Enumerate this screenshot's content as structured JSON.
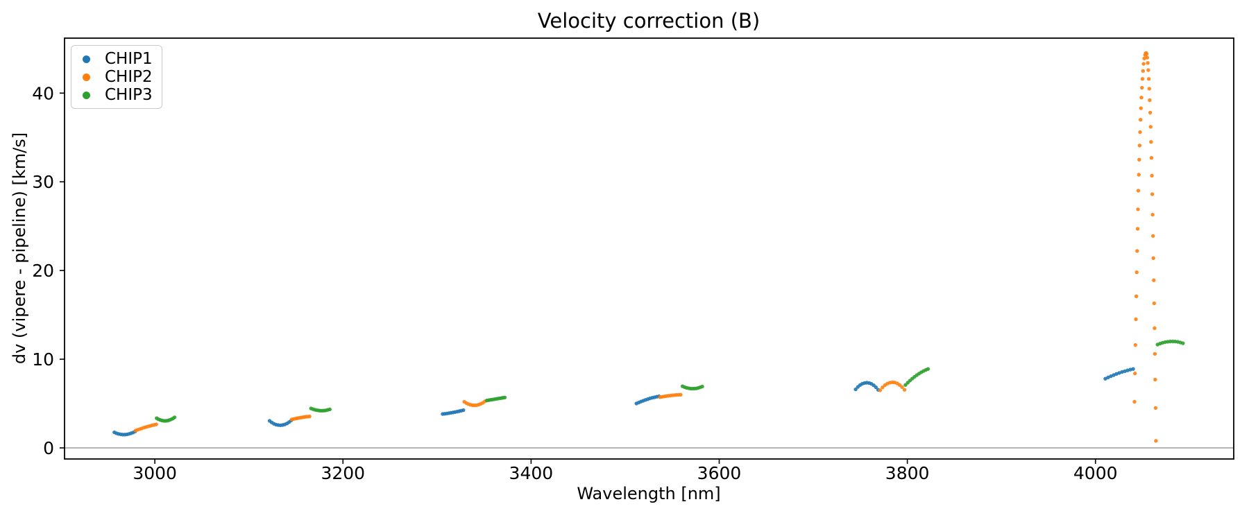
{
  "figure": {
    "title": "Velocity correction (B)",
    "xlabel": "Wavelength [nm]",
    "ylabel": "dv (vipere - pipeline) [km/s]",
    "background": "#ffffff"
  },
  "axes": {
    "xlim": [
      2904,
      4147
    ],
    "ylim": [
      -1.25,
      46.2
    ],
    "xticks": [
      3000,
      3200,
      3400,
      3600,
      3800,
      4000
    ],
    "yticks": [
      0,
      10,
      20,
      30,
      40
    ],
    "spine_color": "#000000",
    "tick_color": "#000000",
    "zero_line": {
      "y": 0,
      "color": "#9b9b9b"
    }
  },
  "legend": {
    "position": "upper left",
    "entries": [
      {
        "label": "CHIP1",
        "color": "#1f77b4"
      },
      {
        "label": "CHIP2",
        "color": "#ff7f0e"
      },
      {
        "label": "CHIP3",
        "color": "#2ca02c"
      }
    ]
  },
  "chart_data": {
    "type": "scatter",
    "title": "Velocity correction (B)",
    "xlabel": "Wavelength [nm]",
    "ylabel": "dv (vipere - pipeline) [km/s]",
    "xlim": [
      2904,
      4147
    ],
    "ylim": [
      -1.25,
      46.2
    ],
    "grid": false,
    "legend_position": "upper left",
    "marker": "dot",
    "marker_radius_px": 2.7,
    "series": [
      {
        "name": "CHIP1",
        "color": "#1f77b4",
        "segments": [
          {
            "x": [
              2957,
              2959.2,
              2961.4,
              2963.6,
              2965.8,
              2968,
              2970.2,
              2972.4,
              2974.6,
              2976.8,
              2979
            ],
            "y": [
              1.75,
              1.65,
              1.58,
              1.53,
              1.5,
              1.5,
              1.52,
              1.57,
              1.64,
              1.73,
              1.85
            ]
          },
          {
            "x": [
              3122,
              3124.3,
              3126.6,
              3128.9,
              3131.2,
              3133.5,
              3135.8,
              3138.1,
              3140.4,
              3142.7,
              3145
            ],
            "y": [
              3.05,
              2.87,
              2.72,
              2.62,
              2.57,
              2.55,
              2.58,
              2.64,
              2.75,
              2.91,
              3.1
            ]
          },
          {
            "x": [
              3306,
              3308.2,
              3310.4,
              3312.6,
              3314.8,
              3317,
              3319.2,
              3321.4,
              3323.6,
              3325.8,
              3328
            ],
            "y": [
              3.82,
              3.85,
              3.88,
              3.92,
              3.96,
              4.0,
              4.04,
              4.09,
              4.14,
              4.2,
              4.25
            ]
          },
          {
            "x": [
              3512,
              3514.4,
              3516.8,
              3519.2,
              3521.6,
              3524,
              3526.4,
              3528.8,
              3531.2,
              3533.6,
              3536
            ],
            "y": [
              5.0,
              5.11,
              5.22,
              5.32,
              5.41,
              5.5,
              5.58,
              5.65,
              5.71,
              5.77,
              5.82
            ]
          },
          {
            "x": [
              3745,
              3747.4,
              3749.8,
              3752.2,
              3754.6,
              3757,
              3759.4,
              3761.8,
              3764.2,
              3766.6,
              3769
            ],
            "y": [
              6.6,
              6.87,
              7.09,
              7.24,
              7.32,
              7.35,
              7.31,
              7.22,
              7.06,
              6.83,
              6.55
            ]
          },
          {
            "x": [
              4010.5,
              4013.5,
              4016.4,
              4019.4,
              4022.3,
              4025.3,
              4028.2,
              4031.2,
              4034.1,
              4037.1,
              4040
            ],
            "y": [
              7.8,
              7.95,
              8.08,
              8.21,
              8.34,
              8.45,
              8.56,
              8.65,
              8.74,
              8.83,
              8.9
            ]
          }
        ]
      },
      {
        "name": "CHIP2",
        "color": "#ff7f0e",
        "segments": [
          {
            "x": [
              2979.5,
              2981.7,
              2983.9,
              2986.1,
              2988.3,
              2990.5,
              2992.7,
              2994.9,
              2997.1,
              2999.3,
              3001.5
            ],
            "y": [
              1.95,
              2.04,
              2.12,
              2.2,
              2.28,
              2.35,
              2.42,
              2.48,
              2.54,
              2.6,
              2.65
            ]
          },
          {
            "x": [
              3145.5,
              3147.4,
              3149.3,
              3151.2,
              3153.1,
              3155,
              3156.9,
              3158.8,
              3160.7,
              3162.6,
              3164.5
            ],
            "y": [
              3.2,
              3.25,
              3.3,
              3.34,
              3.38,
              3.42,
              3.45,
              3.48,
              3.51,
              3.53,
              3.55
            ]
          },
          {
            "x": [
              3329,
              3331.2,
              3333.4,
              3335.6,
              3337.8,
              3340,
              3342.2,
              3344.4,
              3346.6,
              3348.8,
              3351
            ],
            "y": [
              5.2,
              5.05,
              4.94,
              4.86,
              4.81,
              4.8,
              4.82,
              4.88,
              4.97,
              5.09,
              5.25
            ]
          },
          {
            "x": [
              3537,
              3539.2,
              3541.4,
              3543.6,
              3545.8,
              3548,
              3550.2,
              3552.4,
              3554.6,
              3556.8,
              3559
            ],
            "y": [
              5.72,
              5.76,
              5.8,
              5.84,
              5.87,
              5.9,
              5.93,
              5.95,
              5.97,
              5.99,
              6.0
            ]
          },
          {
            "x": [
              3771,
              3773.6,
              3776.2,
              3778.8,
              3781.4,
              3784,
              3786.6,
              3789.2,
              3791.8,
              3794.4,
              3797
            ],
            "y": [
              6.5,
              6.82,
              7.07,
              7.25,
              7.36,
              7.4,
              7.37,
              7.27,
              7.1,
              6.86,
              6.55
            ]
          },
          {
            "x": [
              4041.5,
              4042.0,
              4042.5,
              4043.0,
              4043.4,
              4043.9,
              4044.3,
              4044.8,
              4045.2,
              4045.6,
              4046.1,
              4046.5,
              4047.0,
              4047.4,
              4047.9,
              4048.4,
              4048.9,
              4049.4,
              4050.0,
              4050.6,
              4051.2,
              4051.9,
              4052.7,
              4053.5,
              4054.0,
              4054.3,
              4055.0,
              4055.6,
              4056.2,
              4056.7,
              4057.2,
              4057.7,
              4058.2,
              4058.7,
              4059.1,
              4059.6,
              4060.0,
              4060.4,
              4060.8,
              4061.2,
              4061.6,
              4062.0,
              4062.4,
              4062.8,
              4063.2,
              4063.5,
              4063.9,
              4064.3
            ],
            "y": [
              5.2,
              8.4,
              11.6,
              14.5,
              17.1,
              19.8,
              22.2,
              24.7,
              26.9,
              29.0,
              30.8,
              32.5,
              34.1,
              35.6,
              37.0,
              38.3,
              39.5,
              40.6,
              41.6,
              42.5,
              43.3,
              43.9,
              44.3,
              44.5,
              44.5,
              44.4,
              44.0,
              43.4,
              42.6,
              41.6,
              40.5,
              39.2,
              37.8,
              36.2,
              34.5,
              32.7,
              30.7,
              28.6,
              26.3,
              23.9,
              21.4,
              18.9,
              16.3,
              13.5,
              10.6,
              7.7,
              4.5,
              0.8
            ]
          }
        ]
      },
      {
        "name": "CHIP3",
        "color": "#2ca02c",
        "segments": [
          {
            "x": [
              3002,
              3003.9,
              3005.8,
              3007.7,
              3009.6,
              3011.5,
              3013.4,
              3015.3,
              3017.2,
              3019.1,
              3021
            ],
            "y": [
              3.35,
              3.23,
              3.15,
              3.09,
              3.05,
              3.05,
              3.07,
              3.13,
              3.21,
              3.31,
              3.45
            ]
          },
          {
            "x": [
              3166,
              3168,
              3170,
              3172,
              3174,
              3176,
              3178,
              3180,
              3182,
              3184,
              3186
            ],
            "y": [
              4.45,
              4.37,
              4.3,
              4.25,
              4.22,
              4.2,
              4.2,
              4.21,
              4.24,
              4.29,
              4.35
            ]
          },
          {
            "x": [
              3353,
              3354.9,
              3356.8,
              3358.7,
              3360.6,
              3362.5,
              3364.4,
              3366.3,
              3368.2,
              3370.1,
              3372
            ],
            "y": [
              5.35,
              5.38,
              5.42,
              5.45,
              5.48,
              5.52,
              5.55,
              5.58,
              5.61,
              5.65,
              5.68
            ]
          },
          {
            "x": [
              3561,
              3563.1,
              3565.2,
              3567.3,
              3569.4,
              3571.5,
              3573.6,
              3575.7,
              3577.8,
              3579.9,
              3582
            ],
            "y": [
              6.95,
              6.86,
              6.78,
              6.73,
              6.69,
              6.68,
              6.69,
              6.71,
              6.76,
              6.83,
              6.92
            ]
          },
          {
            "x": [
              3798,
              3800.4,
              3802.8,
              3805.2,
              3807.6,
              3810,
              3812.4,
              3814.8,
              3817.2,
              3819.6,
              3822
            ],
            "y": [
              7.1,
              7.35,
              7.59,
              7.81,
              8.01,
              8.2,
              8.37,
              8.53,
              8.67,
              8.79,
              8.9
            ]
          },
          {
            "x": [
              4066,
              4068.7,
              4071.4,
              4074.1,
              4076.8,
              4079.5,
              4082.2,
              4084.9,
              4087.6,
              4090.3,
              4093
            ],
            "y": [
              11.65,
              11.76,
              11.86,
              11.93,
              11.97,
              12.0,
              12.0,
              11.99,
              11.95,
              11.88,
              11.8
            ]
          }
        ]
      }
    ]
  }
}
